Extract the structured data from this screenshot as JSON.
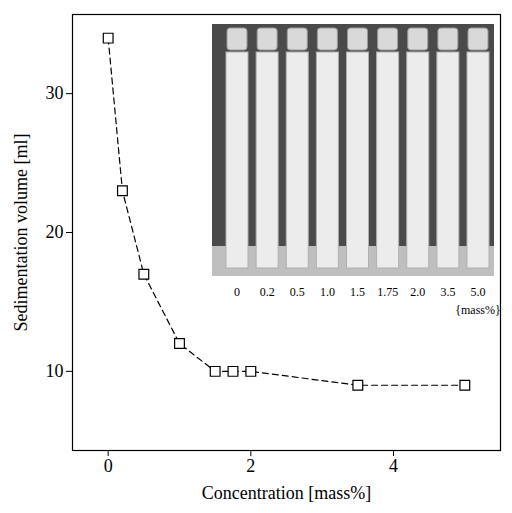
{
  "chart_data": {
    "type": "scatter",
    "x_label": "Concentration [mass%]",
    "y_label": "Sedimentation volume [ml]",
    "x": [
      0,
      0.2,
      0.5,
      1.0,
      1.5,
      1.75,
      2.0,
      3.5,
      5.0
    ],
    "values": [
      34,
      23,
      17,
      12,
      10,
      10,
      10,
      9,
      9
    ],
    "xlim": [
      -0.5,
      5.5
    ],
    "ylim": [
      4.3,
      35.7
    ],
    "xticks": [
      0,
      2,
      4
    ],
    "yticks": [
      10,
      20,
      30
    ],
    "marker": "square",
    "line_style": "dashed",
    "color": "#000000",
    "annotations": [
      "0",
      "0.2",
      "0.5",
      "1.0",
      "1.5",
      "1.75",
      "2.0",
      "3.5",
      "5.0",
      "{mass%}"
    ]
  }
}
